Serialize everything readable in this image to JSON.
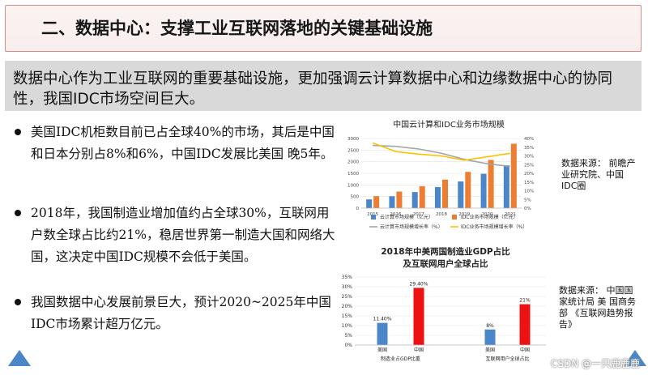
{
  "header": {
    "title": "二、数据中心：支撑工业互联网落地的关键基础设施"
  },
  "intro": {
    "text": "数据中心作为工业互联网的重要基础设施，更加强调云计算数据中心和边缘数据中心的协同性，我国IDC市场空间巨大。"
  },
  "bullets": [
    {
      "text": "美国IDC机柜数目前已占全球40%的市场，其后是中国和日本分别占8%和6%，中国IDC发展比美国 晚5年。"
    },
    {
      "text": "2018年，我国制造业增加值约占全球30%，互联网用户数全球占比约21%，稳居世界第一制造大国和网络大国，这决定中国IDC规模不会低于美国。"
    },
    {
      "text": "我国数据中心发展前景巨大，预计2020~2025年中国IDC市场累计超万亿元。"
    }
  ],
  "sources": {
    "chart1": "数据来源： 前瞻产业研究院、中国IDC圈",
    "chart2": "数据来源： 中国国家统计局 美 国商务部 《互联网趋势报告》"
  },
  "watermark": "CSDN @一只鹿鹿鹿",
  "colors": {
    "blue": "#4a86c8",
    "orange": "#ed7d31",
    "gray": "#a5a5a5",
    "yellow": "#ffc000",
    "red": "#ee1111"
  },
  "chart_data": [
    {
      "type": "bar",
      "title": "中国云计算和IDC业务市场规模",
      "categories": [
        "2015",
        "2016",
        "2017",
        "2018",
        "2019",
        "2020",
        "2021"
      ],
      "ylim": [
        0,
        3000
      ],
      "yticks": [
        "0",
        "500",
        "1000",
        "1500",
        "2000",
        "2500",
        "3000"
      ],
      "y2lim": [
        0,
        40
      ],
      "y2ticks": [
        "0%",
        "5%",
        "10%",
        "15%",
        "20%",
        "25%",
        "30%",
        "35%",
        "40%"
      ],
      "series": [
        {
          "name": "云计算市场规模（亿元）",
          "kind": "bar",
          "color": "#4a86c8",
          "values": [
            378,
            515,
            692,
            907,
            1150,
            1480,
            1850
          ]
        },
        {
          "name": "IDC业务市场规模（亿元）",
          "kind": "bar",
          "color": "#ed7d31",
          "values": [
            518,
            714,
            946,
            1228,
            1562,
            2077,
            2774
          ]
        },
        {
          "name": "云计算市场规模增长率（%）",
          "kind": "line",
          "color": "#a5a5a5",
          "values": [
            36.0,
            35.5,
            34.0,
            31.5,
            28.0,
            25.5,
            24.0
          ]
        },
        {
          "name": "IDC业务市场规模增长率（%）",
          "kind": "line",
          "color": "#ffc000",
          "values": [
            37.5,
            32.5,
            31.0,
            30.0,
            27.5,
            29.5,
            31.5
          ]
        }
      ]
    },
    {
      "type": "bar",
      "title": "2018年中美两国制造业GDP占比及互联网用户全球占比",
      "ylim": [
        0,
        35
      ],
      "yticks": [
        "0%",
        "5%",
        "10%",
        "15%",
        "20%",
        "25%",
        "30%",
        "35%"
      ],
      "groups": [
        {
          "label": "制造业占GDP比重",
          "categories": [
            "美国",
            "中国"
          ],
          "values": [
            11.4,
            29.4
          ],
          "labels": [
            "11.40%",
            "29.40%"
          ],
          "colors": [
            "#4a86c8",
            "#ee1111"
          ]
        },
        {
          "label": "互联网用户全球占比",
          "categories": [
            "美国",
            "中国"
          ],
          "values": [
            8,
            21
          ],
          "labels": [
            "8%",
            "21%"
          ],
          "colors": [
            "#4a86c8",
            "#ee1111"
          ]
        }
      ]
    }
  ]
}
